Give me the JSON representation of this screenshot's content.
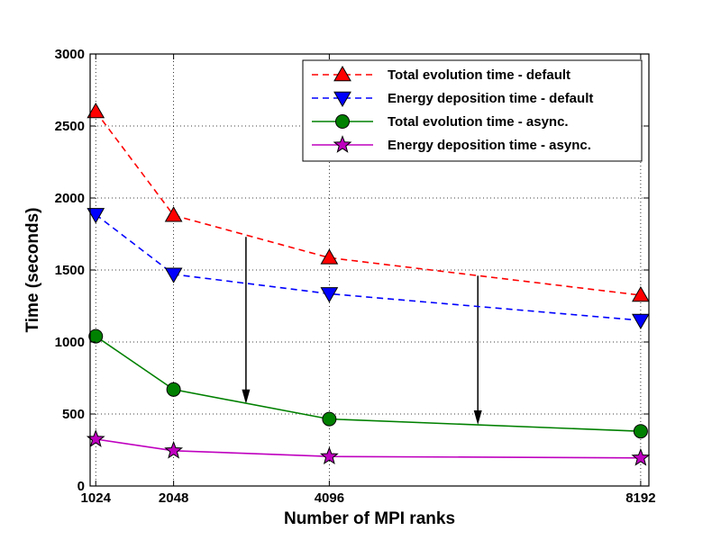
{
  "chart_data": {
    "type": "line",
    "title": "",
    "xlabel": "Number of MPI ranks",
    "ylabel": "Time (seconds)",
    "x": [
      1024,
      2048,
      4096,
      8192
    ],
    "x_tick_labels": [
      "1024",
      "2048",
      "4096",
      "8192"
    ],
    "xlim": [
      950,
      8300
    ],
    "ylim": [
      0,
      3000
    ],
    "y_ticks": [
      0,
      500,
      1000,
      1500,
      2000,
      2500,
      3000
    ],
    "grid": true,
    "legend_position": "top-right",
    "series": [
      {
        "name": "Total evolution time - default",
        "values": [
          2600,
          1880,
          1585,
          1325
        ],
        "color": "#ff0000",
        "line_style": "dashed",
        "marker": "triangle-up"
      },
      {
        "name": "Energy deposition time - default",
        "values": [
          1885,
          1470,
          1335,
          1150
        ],
        "color": "#0000ff",
        "line_style": "dashed",
        "marker": "triangle-down"
      },
      {
        "name": "Total evolution time - async.",
        "values": [
          1040,
          670,
          465,
          380
        ],
        "color": "#008000",
        "line_style": "solid",
        "marker": "circle"
      },
      {
        "name": "Energy deposition time - async.",
        "values": [
          325,
          245,
          205,
          195
        ],
        "color": "#bf00bf",
        "line_style": "solid",
        "marker": "star"
      }
    ],
    "annotations": [
      {
        "type": "arrow",
        "x": 3000,
        "y_from": 1730,
        "y_to": 570
      },
      {
        "type": "arrow",
        "x": 6050,
        "y_from": 1460,
        "y_to": 425
      }
    ]
  }
}
